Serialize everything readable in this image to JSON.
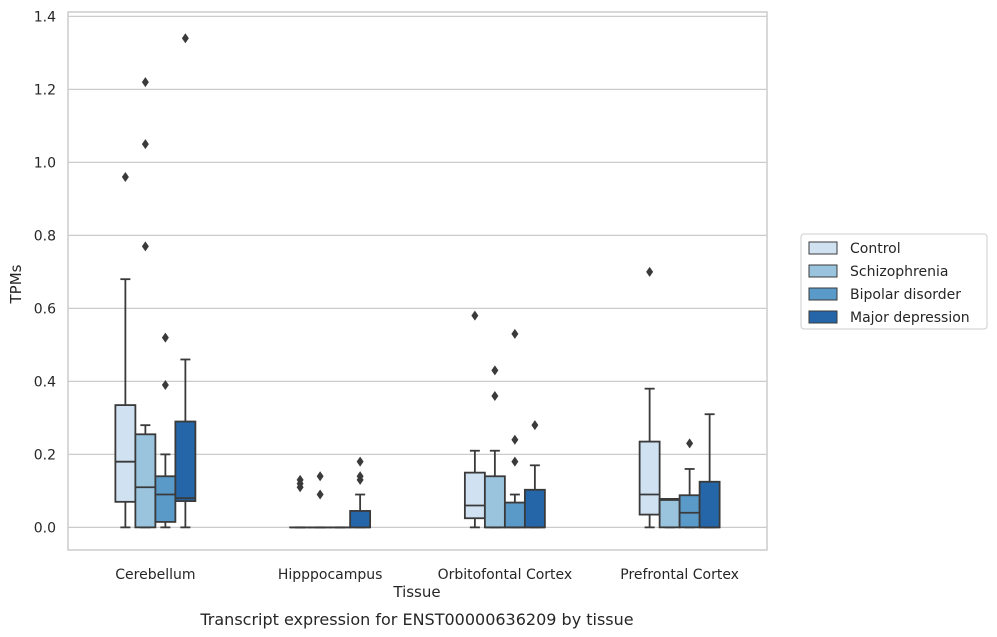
{
  "chart_data": {
    "type": "box",
    "xlabel": "Tissue",
    "ylabel": "TPMs",
    "caption": "Transcript expression for ENST00000636209 by tissue",
    "ylim": [
      -0.062,
      1.412
    ],
    "yticks": [
      "0.0",
      "0.2",
      "0.4",
      "0.6",
      "0.8",
      "1.0",
      "1.2",
      "1.4"
    ],
    "grid": "horizontal",
    "legend_position": "right",
    "categories": [
      "Cerebellum",
      "Hipppocampus",
      "Orbitofontal Cortex",
      "Prefrontal Cortex"
    ],
    "series": [
      {
        "name": "Control",
        "color": "#d0e1f2",
        "boxes": [
          {
            "whislo": 0.0,
            "q1": 0.07,
            "med": 0.18,
            "q3": 0.335,
            "whishi": 0.68,
            "fliers": [
              0.96
            ]
          },
          {
            "whislo": 0.0,
            "q1": 0.0,
            "med": 0.0,
            "q3": 0.0,
            "whishi": 0.0,
            "fliers": [
              0.11,
              0.12,
              0.13
            ]
          },
          {
            "whislo": 0.0,
            "q1": 0.025,
            "med": 0.06,
            "q3": 0.15,
            "whishi": 0.21,
            "fliers": [
              0.58
            ]
          },
          {
            "whislo": 0.0,
            "q1": 0.035,
            "med": 0.09,
            "q3": 0.235,
            "whishi": 0.38,
            "fliers": [
              0.7
            ]
          }
        ]
      },
      {
        "name": "Schizophrenia",
        "color": "#9ac4de",
        "boxes": [
          {
            "whislo": 0.0,
            "q1": 0.0,
            "med": 0.11,
            "q3": 0.255,
            "whishi": 0.28,
            "fliers": [
              0.77,
              1.05,
              1.22
            ]
          },
          {
            "whislo": 0.0,
            "q1": 0.0,
            "med": 0.0,
            "q3": 0.0,
            "whishi": 0.0,
            "fliers": [
              0.09,
              0.14
            ]
          },
          {
            "whislo": 0.0,
            "q1": 0.0,
            "med": 0.0,
            "q3": 0.14,
            "whishi": 0.21,
            "fliers": [
              0.36,
              0.43
            ]
          },
          {
            "whislo": 0.0,
            "q1": 0.0,
            "med": 0.075,
            "q3": 0.078,
            "whishi": 0.078,
            "fliers": []
          }
        ]
      },
      {
        "name": "Bipolar disorder",
        "color": "#5a9ac9",
        "boxes": [
          {
            "whislo": 0.0,
            "q1": 0.015,
            "med": 0.09,
            "q3": 0.14,
            "whishi": 0.2,
            "fliers": [
              0.39,
              0.52
            ]
          },
          {
            "whislo": 0.0,
            "q1": 0.0,
            "med": 0.0,
            "q3": 0.0,
            "whishi": 0.0,
            "fliers": []
          },
          {
            "whislo": 0.0,
            "q1": 0.0,
            "med": 0.0,
            "q3": 0.068,
            "whishi": 0.09,
            "fliers": [
              0.18,
              0.24,
              0.53
            ]
          },
          {
            "whislo": 0.0,
            "q1": 0.0,
            "med": 0.04,
            "q3": 0.088,
            "whishi": 0.16,
            "fliers": [
              0.23
            ]
          }
        ]
      },
      {
        "name": "Major depression",
        "color": "#2566a8",
        "boxes": [
          {
            "whislo": 0.0,
            "q1": 0.072,
            "med": 0.08,
            "q3": 0.29,
            "whishi": 0.46,
            "fliers": [
              1.34
            ]
          },
          {
            "whislo": 0.0,
            "q1": 0.0,
            "med": 0.0,
            "q3": 0.045,
            "whishi": 0.09,
            "fliers": [
              0.13,
              0.14,
              0.18
            ]
          },
          {
            "whislo": 0.0,
            "q1": 0.0,
            "med": 0.0,
            "q3": 0.103,
            "whishi": 0.17,
            "fliers": [
              0.28
            ]
          },
          {
            "whislo": 0.0,
            "q1": 0.0,
            "med": 0.0,
            "q3": 0.125,
            "whishi": 0.31,
            "fliers": []
          }
        ]
      }
    ]
  }
}
